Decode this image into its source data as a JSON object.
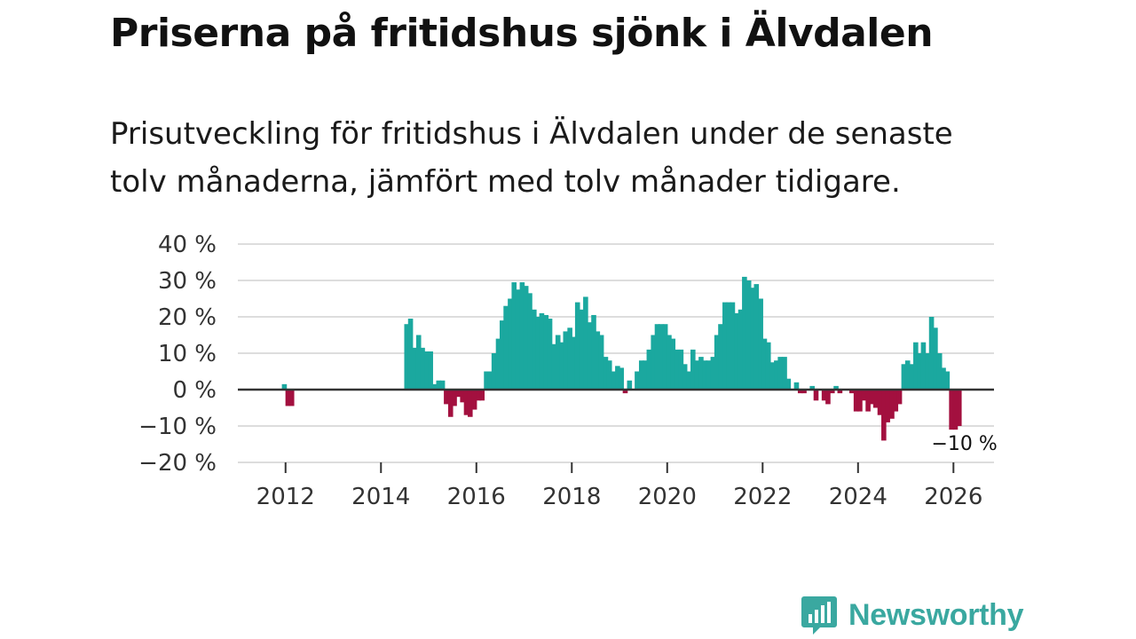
{
  "header": {
    "title": "Priserna på fritidshus sjönk i Älvdalen",
    "subtitle": "Prisutveckling för fritidshus i Älvdalen under de senaste tolv månaderna, jämfört med tolv månader tidigare."
  },
  "brand": {
    "name": "Newsworthy",
    "icon": "bar-chart-speech-bubble-icon"
  },
  "colors": {
    "positive": "#1ba89f",
    "negative": "#a3103f",
    "grid": "#dddddd",
    "zero_line": "#333333",
    "brand": "#3aa8a0"
  },
  "chart_data": {
    "type": "bar",
    "title": "Priserna på fritidshus sjönk i Älvdalen",
    "xlabel": "",
    "ylabel": "",
    "unit": "%",
    "ylim": [
      -20,
      40
    ],
    "y_ticks": [
      40,
      30,
      20,
      10,
      0,
      -10,
      -20
    ],
    "y_tick_labels": [
      "40 %",
      "30 %",
      "20 %",
      "10 %",
      "0 %",
      "−10 %",
      "−20 %"
    ],
    "x_ticks": [
      2012,
      2014,
      2016,
      2018,
      2020,
      2022,
      2024,
      2026
    ],
    "x_tick_labels": [
      "2012",
      "2014",
      "2016",
      "2018",
      "2020",
      "2022",
      "2024",
      "2026"
    ],
    "xlim": [
      2011.0,
      2026.85
    ],
    "grid": true,
    "annotation": {
      "label": "−10 %",
      "x": 2026.08,
      "value": -10
    },
    "series": [
      {
        "name": "Prisutveckling fritidshus Älvdalen",
        "values": [
          {
            "t": 2011.975,
            "v": 1.5
          },
          {
            "t": 2012.05,
            "v": -4.5
          },
          {
            "t": 2012.13,
            "v": -4.5
          },
          {
            "t": 2014.54,
            "v": 18
          },
          {
            "t": 2014.62,
            "v": 19.5
          },
          {
            "t": 2014.71,
            "v": 11.5
          },
          {
            "t": 2014.79,
            "v": 15
          },
          {
            "t": 2014.87,
            "v": 11.5
          },
          {
            "t": 2014.96,
            "v": 10.5
          },
          {
            "t": 2015.04,
            "v": 10.5
          },
          {
            "t": 2015.12,
            "v": 1.5
          },
          {
            "t": 2015.21,
            "v": 2.5
          },
          {
            "t": 2015.29,
            "v": 2.5
          },
          {
            "t": 2015.37,
            "v": -4
          },
          {
            "t": 2015.46,
            "v": -7.5
          },
          {
            "t": 2015.54,
            "v": -4.5
          },
          {
            "t": 2015.62,
            "v": -2
          },
          {
            "t": 2015.71,
            "v": -3.5
          },
          {
            "t": 2015.79,
            "v": -7
          },
          {
            "t": 2015.87,
            "v": -7.5
          },
          {
            "t": 2015.96,
            "v": -5.5
          },
          {
            "t": 2016.04,
            "v": -3
          },
          {
            "t": 2016.12,
            "v": -3
          },
          {
            "t": 2016.21,
            "v": 5
          },
          {
            "t": 2016.29,
            "v": 5
          },
          {
            "t": 2016.37,
            "v": 10
          },
          {
            "t": 2016.46,
            "v": 14
          },
          {
            "t": 2016.54,
            "v": 19
          },
          {
            "t": 2016.62,
            "v": 23
          },
          {
            "t": 2016.71,
            "v": 25
          },
          {
            "t": 2016.79,
            "v": 29.5
          },
          {
            "t": 2016.87,
            "v": 27.5
          },
          {
            "t": 2016.96,
            "v": 29.5
          },
          {
            "t": 2017.04,
            "v": 28.5
          },
          {
            "t": 2017.12,
            "v": 26.5
          },
          {
            "t": 2017.21,
            "v": 22
          },
          {
            "t": 2017.29,
            "v": 20
          },
          {
            "t": 2017.37,
            "v": 21
          },
          {
            "t": 2017.46,
            "v": 20.5
          },
          {
            "t": 2017.54,
            "v": 19.5
          },
          {
            "t": 2017.62,
            "v": 12.5
          },
          {
            "t": 2017.71,
            "v": 15
          },
          {
            "t": 2017.79,
            "v": 13
          },
          {
            "t": 2017.87,
            "v": 16
          },
          {
            "t": 2017.96,
            "v": 17
          },
          {
            "t": 2018.04,
            "v": 14.5
          },
          {
            "t": 2018.12,
            "v": 24
          },
          {
            "t": 2018.21,
            "v": 22
          },
          {
            "t": 2018.29,
            "v": 25.5
          },
          {
            "t": 2018.37,
            "v": 18.5
          },
          {
            "t": 2018.46,
            "v": 20.5
          },
          {
            "t": 2018.54,
            "v": 16
          },
          {
            "t": 2018.62,
            "v": 15
          },
          {
            "t": 2018.71,
            "v": 9
          },
          {
            "t": 2018.79,
            "v": 8
          },
          {
            "t": 2018.87,
            "v": 5
          },
          {
            "t": 2018.96,
            "v": 6.5
          },
          {
            "t": 2019.04,
            "v": 6
          },
          {
            "t": 2019.12,
            "v": -1
          },
          {
            "t": 2019.21,
            "v": 2.5
          },
          {
            "t": 2019.37,
            "v": 5
          },
          {
            "t": 2019.46,
            "v": 8
          },
          {
            "t": 2019.54,
            "v": 8
          },
          {
            "t": 2019.62,
            "v": 11
          },
          {
            "t": 2019.71,
            "v": 15
          },
          {
            "t": 2019.79,
            "v": 18
          },
          {
            "t": 2019.87,
            "v": 18
          },
          {
            "t": 2019.96,
            "v": 18
          },
          {
            "t": 2020.04,
            "v": 15
          },
          {
            "t": 2020.12,
            "v": 14
          },
          {
            "t": 2020.21,
            "v": 11
          },
          {
            "t": 2020.29,
            "v": 11
          },
          {
            "t": 2020.37,
            "v": 7
          },
          {
            "t": 2020.46,
            "v": 5
          },
          {
            "t": 2020.54,
            "v": 11
          },
          {
            "t": 2020.62,
            "v": 8
          },
          {
            "t": 2020.71,
            "v": 9
          },
          {
            "t": 2020.79,
            "v": 8
          },
          {
            "t": 2020.87,
            "v": 8
          },
          {
            "t": 2020.96,
            "v": 9
          },
          {
            "t": 2021.04,
            "v": 15
          },
          {
            "t": 2021.12,
            "v": 18
          },
          {
            "t": 2021.21,
            "v": 24
          },
          {
            "t": 2021.29,
            "v": 24
          },
          {
            "t": 2021.37,
            "v": 24
          },
          {
            "t": 2021.46,
            "v": 21
          },
          {
            "t": 2021.54,
            "v": 22
          },
          {
            "t": 2021.62,
            "v": 31
          },
          {
            "t": 2021.71,
            "v": 30
          },
          {
            "t": 2021.79,
            "v": 28
          },
          {
            "t": 2021.87,
            "v": 29
          },
          {
            "t": 2021.96,
            "v": 25
          },
          {
            "t": 2022.04,
            "v": 14
          },
          {
            "t": 2022.12,
            "v": 13
          },
          {
            "t": 2022.21,
            "v": 7.5
          },
          {
            "t": 2022.29,
            "v": 8
          },
          {
            "t": 2022.37,
            "v": 9
          },
          {
            "t": 2022.46,
            "v": 9
          },
          {
            "t": 2022.54,
            "v": 3
          },
          {
            "t": 2022.71,
            "v": 2
          },
          {
            "t": 2022.79,
            "v": -1
          },
          {
            "t": 2022.87,
            "v": -1
          },
          {
            "t": 2023.04,
            "v": 1
          },
          {
            "t": 2023.12,
            "v": -3
          },
          {
            "t": 2023.29,
            "v": -3
          },
          {
            "t": 2023.37,
            "v": -4
          },
          {
            "t": 2023.46,
            "v": -1
          },
          {
            "t": 2023.54,
            "v": 1
          },
          {
            "t": 2023.62,
            "v": -1
          },
          {
            "t": 2023.87,
            "v": -1
          },
          {
            "t": 2023.96,
            "v": -6
          },
          {
            "t": 2024.04,
            "v": -6
          },
          {
            "t": 2024.12,
            "v": -3
          },
          {
            "t": 2024.21,
            "v": -6
          },
          {
            "t": 2024.29,
            "v": -4
          },
          {
            "t": 2024.37,
            "v": -5
          },
          {
            "t": 2024.46,
            "v": -7
          },
          {
            "t": 2024.54,
            "v": -14
          },
          {
            "t": 2024.62,
            "v": -9
          },
          {
            "t": 2024.71,
            "v": -8
          },
          {
            "t": 2024.79,
            "v": -6
          },
          {
            "t": 2024.87,
            "v": -4
          },
          {
            "t": 2024.96,
            "v": 7
          },
          {
            "t": 2025.04,
            "v": 8
          },
          {
            "t": 2025.12,
            "v": 7
          },
          {
            "t": 2025.21,
            "v": 13
          },
          {
            "t": 2025.29,
            "v": 10
          },
          {
            "t": 2025.37,
            "v": 13
          },
          {
            "t": 2025.46,
            "v": 10
          },
          {
            "t": 2025.54,
            "v": 20
          },
          {
            "t": 2025.62,
            "v": 17
          },
          {
            "t": 2025.71,
            "v": 10
          },
          {
            "t": 2025.79,
            "v": 6
          },
          {
            "t": 2025.87,
            "v": 5
          },
          {
            "t": 2025.96,
            "v": -11
          },
          {
            "t": 2026.04,
            "v": -11
          },
          {
            "t": 2026.12,
            "v": -10
          }
        ]
      }
    ]
  }
}
